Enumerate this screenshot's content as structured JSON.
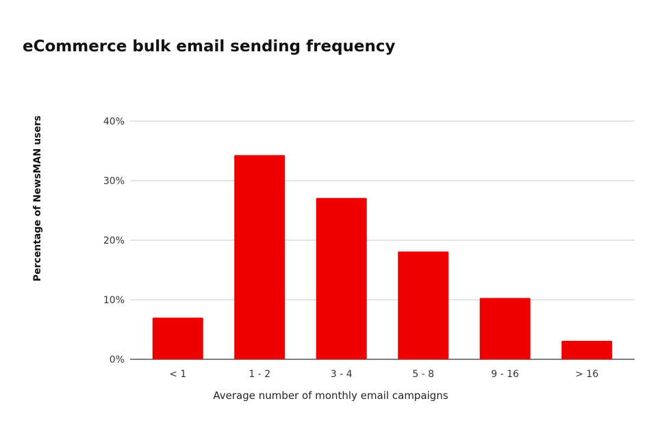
{
  "chart_data": {
    "type": "bar",
    "title": "eCommerce bulk email sending frequency",
    "xlabel": "Average number of monthly email campaigns",
    "ylabel": "Percentage of NewsMAN users",
    "categories": [
      "< 1",
      "1 - 2",
      "3 - 4",
      "5 - 8",
      "9 - 16",
      "> 16"
    ],
    "values": [
      7,
      34.3,
      27.1,
      18.1,
      10.3,
      3.1
    ],
    "ylim": [
      0,
      40
    ],
    "yticks": [
      "0%",
      "10%",
      "20%",
      "30%",
      "40%"
    ],
    "grid": true,
    "bar_color": "#ee0000",
    "grid_color": "#c9c9c9",
    "axis_color": "#555555"
  }
}
